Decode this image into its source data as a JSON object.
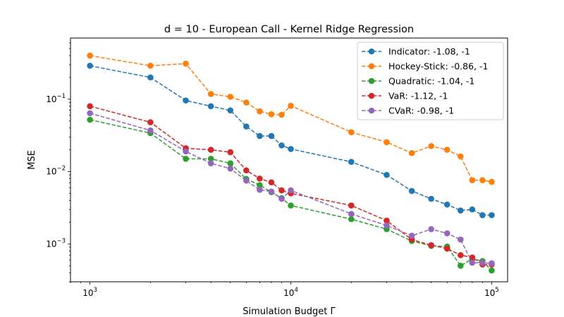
{
  "chart_data": {
    "type": "line",
    "title": "d = 10 - European Call - Kernel Ridge Regression",
    "xlabel": "Simulation Budget Γ",
    "ylabel": "MSE",
    "xscale": "log",
    "yscale": "log",
    "xlim": [
      800,
      120000
    ],
    "ylim": [
      0.0003,
      0.7
    ],
    "xticks": [
      {
        "value": 1000,
        "base": "10",
        "exp": "3"
      },
      {
        "value": 10000,
        "base": "10",
        "exp": "4"
      },
      {
        "value": 100000,
        "base": "10",
        "exp": "5"
      }
    ],
    "yticks": [
      {
        "value": 0.001,
        "base": "10",
        "exp": "−3"
      },
      {
        "value": 0.01,
        "base": "10",
        "exp": "−2"
      },
      {
        "value": 0.1,
        "base": "10",
        "exp": "−1"
      }
    ],
    "grid": false,
    "legend_position": "top-right",
    "line_style": "dashed",
    "marker": "circle",
    "x": [
      1000,
      2000,
      3000,
      4000,
      5000,
      6000,
      7000,
      8000,
      9000,
      10000,
      20000,
      30000,
      40000,
      50000,
      60000,
      70000,
      80000,
      90000,
      100000
    ],
    "series": [
      {
        "name": "Indicator: -1.08, -1",
        "color": "#1f77b4",
        "values": [
          0.29,
          0.2,
          0.096,
          0.08,
          0.07,
          0.042,
          0.031,
          0.031,
          0.023,
          0.0205,
          0.0136,
          0.009,
          0.0054,
          0.0042,
          0.0035,
          0.0029,
          0.003,
          0.0025,
          0.0025
        ]
      },
      {
        "name": "Hockey-Stick: -0.86, -1",
        "color": "#ff7f0e",
        "values": [
          0.4,
          0.29,
          0.31,
          0.118,
          0.108,
          0.09,
          0.068,
          0.062,
          0.061,
          0.081,
          0.035,
          0.0255,
          0.018,
          0.0225,
          0.02,
          0.0162,
          0.0076,
          0.0076,
          0.0072
        ]
      },
      {
        "name": "Quadratic: -1.04, -1",
        "color": "#2ca02c",
        "values": [
          0.052,
          0.034,
          0.015,
          0.015,
          0.013,
          0.0079,
          0.0065,
          0.0052,
          0.0043,
          0.0034,
          0.0022,
          0.0016,
          0.0011,
          0.00094,
          0.00092,
          0.0005,
          0.00062,
          0.00058,
          0.00043
        ]
      },
      {
        "name": "VaR: -1.12, -1",
        "color": "#d62728",
        "values": [
          0.08,
          0.048,
          0.021,
          0.02,
          0.0185,
          0.0104,
          0.008,
          0.0071,
          0.0055,
          0.005,
          0.0034,
          0.0021,
          0.00115,
          0.00096,
          0.00086,
          0.0007,
          0.00065,
          0.00052,
          0.00052
        ]
      },
      {
        "name": "CVaR: -0.98, -1",
        "color": "#9467bd",
        "values": [
          0.064,
          0.037,
          0.019,
          0.013,
          0.011,
          0.0075,
          0.0056,
          0.0053,
          0.0042,
          0.0055,
          0.0026,
          0.0018,
          0.0013,
          0.0016,
          0.0014,
          0.00115,
          0.00055,
          0.00055,
          0.00054
        ]
      }
    ]
  }
}
